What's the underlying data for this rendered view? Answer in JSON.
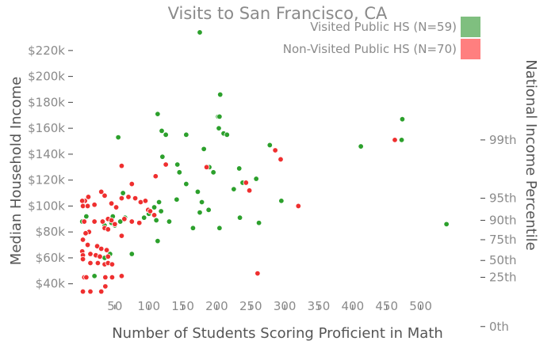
{
  "chart_data": {
    "type": "scatter",
    "title": "Visits to San Francisco, CA",
    "xlabel": "Number of Students Scoring Proficient in Math",
    "ylabel": "Median Household Income",
    "y2label": "National Income Percentile",
    "xlim": [
      0,
      560
    ],
    "ylim": [
      27000,
      237000
    ],
    "x_ticks": [
      50,
      100,
      150,
      200,
      250,
      300,
      350,
      400,
      450,
      500
    ],
    "y_ticks": [
      {
        "value": 40000,
        "label": "$40k"
      },
      {
        "value": 60000,
        "label": "$60k"
      },
      {
        "value": 80000,
        "label": "$80k"
      },
      {
        "value": 100000,
        "label": "$100k"
      },
      {
        "value": 120000,
        "label": "$120k"
      },
      {
        "value": 140000,
        "label": "$140k"
      },
      {
        "value": 160000,
        "label": "$160k"
      },
      {
        "value": 180000,
        "label": "$180k"
      },
      {
        "value": 200000,
        "label": "$200k"
      },
      {
        "value": 220000,
        "label": "$220k"
      }
    ],
    "y2_ticks": [
      {
        "value": 7000,
        "label": "0th"
      },
      {
        "value": 45000,
        "label": "25th"
      },
      {
        "value": 58000,
        "label": "50th"
      },
      {
        "value": 74000,
        "label": "75th"
      },
      {
        "value": 89000,
        "label": "90th"
      },
      {
        "value": 106000,
        "label": "95th"
      },
      {
        "value": 151000,
        "label": "99th"
      }
    ],
    "legend_position": "top-right",
    "series": [
      {
        "name": "Visited Public HS (N=59)",
        "color": "#2ca02c",
        "legend_color": "#7fbf7f",
        "points": [
          [
            175,
            234000
          ],
          [
            205,
            186000
          ],
          [
            113,
            171000
          ],
          [
            202,
            169000
          ],
          [
            204,
            169000
          ],
          [
            473,
            167000
          ],
          [
            119,
            158000
          ],
          [
            203,
            160000
          ],
          [
            125,
            155000
          ],
          [
            155,
            155000
          ],
          [
            210,
            156000
          ],
          [
            215,
            155000
          ],
          [
            55,
            153000
          ],
          [
            472,
            151000
          ],
          [
            278,
            147000
          ],
          [
            412,
            146000
          ],
          [
            181,
            144000
          ],
          [
            120,
            138000
          ],
          [
            142,
            132000
          ],
          [
            189,
            130000
          ],
          [
            233,
            129000
          ],
          [
            145,
            126000
          ],
          [
            195,
            126000
          ],
          [
            155,
            117000
          ],
          [
            258,
            121000
          ],
          [
            238,
            118000
          ],
          [
            225,
            113000
          ],
          [
            172,
            111000
          ],
          [
            62,
            110000
          ],
          [
            141,
            105000
          ],
          [
            178,
            103000
          ],
          [
            115,
            103000
          ],
          [
            295,
            104000
          ],
          [
            108,
            99000
          ],
          [
            118,
            96000
          ],
          [
            188,
            97000
          ],
          [
            100,
            94000
          ],
          [
            93,
            91000
          ],
          [
            175,
            95000
          ],
          [
            47,
            92000
          ],
          [
            8,
            92000
          ],
          [
            2,
            88000
          ],
          [
            111,
            89000
          ],
          [
            130,
            88000
          ],
          [
            234,
            91000
          ],
          [
            262,
            87000
          ],
          [
            538,
            86000
          ],
          [
            165,
            83000
          ],
          [
            204,
            83000
          ],
          [
            50,
            85000
          ],
          [
            45,
            87000
          ],
          [
            58,
            88000
          ],
          [
            35,
            85000
          ],
          [
            65,
            91000
          ],
          [
            113,
            73000
          ],
          [
            75,
            63000
          ],
          [
            43,
            63000
          ],
          [
            35,
            60000
          ],
          [
            20,
            46000
          ]
        ]
      },
      {
        "name": "Non-Visited Public HS (N=70)",
        "color": "#ef2f2f",
        "legend_color": "#ff7f7f",
        "points": [
          [
            125,
            132000
          ],
          [
            60,
            131000
          ],
          [
            110,
            123000
          ],
          [
            75,
            117000
          ],
          [
            185,
            130000
          ],
          [
            286,
            143000
          ],
          [
            294,
            136000
          ],
          [
            462,
            151000
          ],
          [
            243,
            118000
          ],
          [
            248,
            112000
          ],
          [
            60,
            106000
          ],
          [
            70,
            107000
          ],
          [
            80,
            106000
          ],
          [
            88,
            103000
          ],
          [
            95,
            104000
          ],
          [
            30,
            111000
          ],
          [
            35,
            108000
          ],
          [
            11,
            107000
          ],
          [
            6,
            104000
          ],
          [
            2,
            104000
          ],
          [
            3,
            100000
          ],
          [
            10,
            100000
          ],
          [
            20,
            101000
          ],
          [
            45,
            102000
          ],
          [
            52,
            99000
          ],
          [
            320,
            100000
          ],
          [
            99,
            97000
          ],
          [
            102,
            96000
          ],
          [
            108,
            93000
          ],
          [
            40,
            90000
          ],
          [
            45,
            89000
          ],
          [
            32,
            88000
          ],
          [
            20,
            88000
          ],
          [
            5,
            88000
          ],
          [
            50,
            86000
          ],
          [
            64,
            90000
          ],
          [
            75,
            88000
          ],
          [
            86,
            87000
          ],
          [
            35,
            83000
          ],
          [
            40,
            82000
          ],
          [
            12,
            80000
          ],
          [
            7,
            79000
          ],
          [
            60,
            77000
          ],
          [
            3,
            74000
          ],
          [
            10,
            70000
          ],
          [
            24,
            69000
          ],
          [
            30,
            67000
          ],
          [
            38,
            66000
          ],
          [
            2,
            65000
          ],
          [
            3,
            62000
          ],
          [
            14,
            63000
          ],
          [
            22,
            62000
          ],
          [
            28,
            61000
          ],
          [
            40,
            61000
          ],
          [
            3,
            59000
          ],
          [
            14,
            56000
          ],
          [
            25,
            56000
          ],
          [
            35,
            55000
          ],
          [
            40,
            56000
          ],
          [
            46,
            55000
          ],
          [
            5,
            45000
          ],
          [
            8,
            45000
          ],
          [
            36,
            45000
          ],
          [
            46,
            45000
          ],
          [
            60,
            46000
          ],
          [
            260,
            48000
          ],
          [
            3,
            34000
          ],
          [
            14,
            34000
          ],
          [
            30,
            34000
          ],
          [
            36,
            38000
          ]
        ]
      }
    ]
  }
}
